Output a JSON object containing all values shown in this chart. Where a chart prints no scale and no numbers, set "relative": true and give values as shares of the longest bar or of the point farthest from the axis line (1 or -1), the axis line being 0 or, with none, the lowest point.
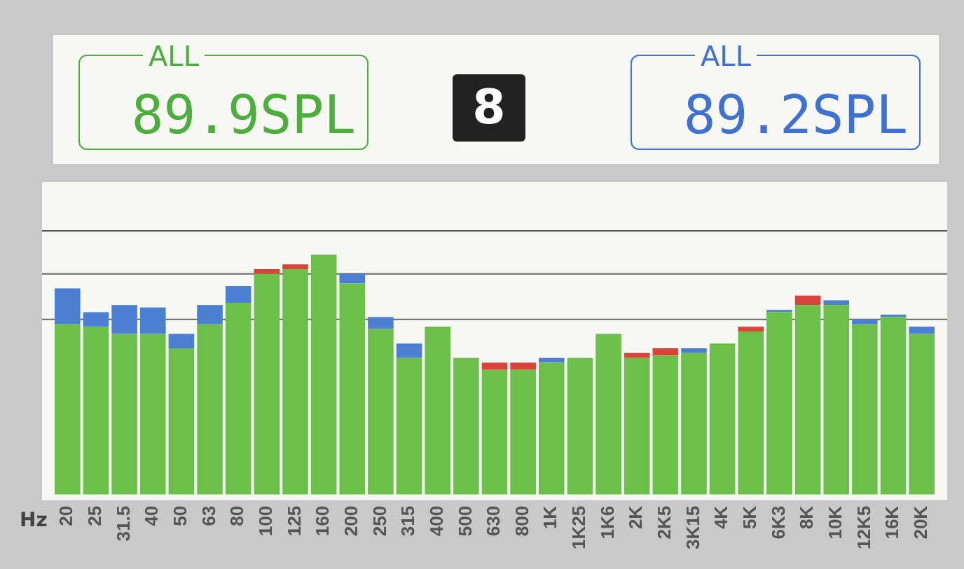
{
  "chart_data": {
    "type": "bar",
    "relative": true,
    "xlabel": "Hz",
    "categories": [
      "20",
      "25",
      "31.5",
      "40",
      "50",
      "63",
      "80",
      "100",
      "125",
      "160",
      "200",
      "250",
      "315",
      "400",
      "500",
      "630",
      "800",
      "1K",
      "1K25",
      "1K6",
      "2K",
      "2K5",
      "3K15",
      "4K",
      "5K",
      "6K3",
      "8K",
      "10K",
      "12K5",
      "16K",
      "20K"
    ],
    "series": [
      {
        "color": "#6cc04a",
        "values": [
          0.71,
          0.7,
          0.67,
          0.67,
          0.61,
          0.71,
          0.8,
          0.92,
          0.94,
          1,
          0.88,
          0.69,
          0.57,
          0.7,
          0.57,
          0.52,
          0.52,
          0.55,
          0.57,
          0.67,
          0.57,
          0.58,
          0.59,
          0.63,
          0.68,
          0.76,
          0.79,
          0.79,
          0.71,
          0.74,
          0.67
        ]
      },
      {
        "color": "#4a7fd4",
        "values": [
          0.15,
          0.06,
          0.12,
          0.11,
          0.06,
          0.08,
          0.07,
          null,
          null,
          null,
          0.04,
          0.05,
          0.06,
          null,
          null,
          null,
          null,
          0.02,
          null,
          null,
          null,
          null,
          0.02,
          null,
          null,
          0.01,
          null,
          0.02,
          0.02,
          0.01,
          0.03
        ]
      },
      {
        "color": "#d9433a",
        "values": [
          null,
          null,
          null,
          null,
          null,
          null,
          null,
          0.02,
          0.02,
          null,
          null,
          null,
          null,
          null,
          null,
          0.03,
          0.03,
          null,
          null,
          null,
          0.02,
          0.03,
          null,
          null,
          0.02,
          null,
          0.04,
          null,
          null,
          null,
          null
        ]
      }
    ],
    "stacked": true,
    "ref_lines": [
      {
        "axis": "y",
        "value": 1.1,
        "color": "#555555"
      },
      {
        "axis": "y",
        "value": 0.92,
        "color": "#777777"
      },
      {
        "axis": "y",
        "value": 0.73,
        "color": "#777777"
      }
    ],
    "annotations": [
      "ALL",
      "89.9SPL",
      "8",
      "ALL",
      "89.2SPL"
    ],
    "grid": false,
    "legend": false
  }
}
